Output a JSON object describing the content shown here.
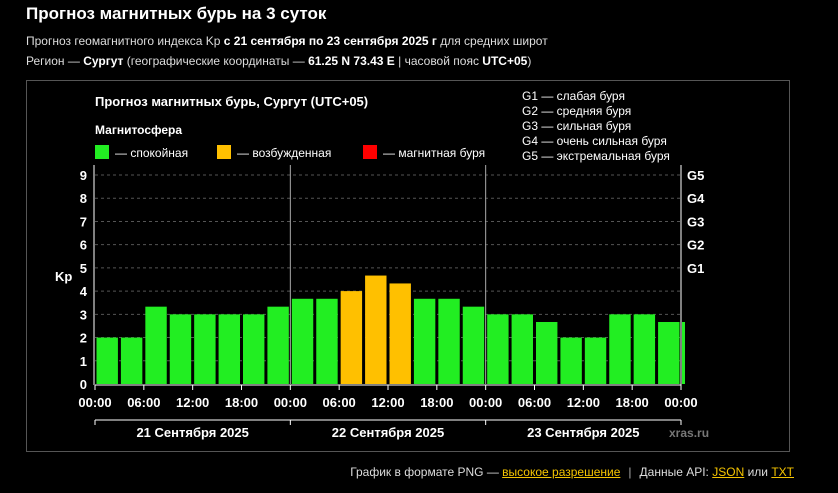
{
  "header": {
    "title": "Прогноз магнитных бурь на 3 суток",
    "sub1_a": "Прогноз геомагнитного индекса Kp",
    "sub1_dates": " с 21 сентября по 23 сентября 2025 г",
    "sub1_b": " для средних широт",
    "sub2_a": "Регион — ",
    "sub2_city": "Сургут",
    "sub2_b": " (географические координаты — ",
    "sub2_coords": "61.25 N 73.43 E",
    "sub2_c": " | часовой пояс ",
    "sub2_tz": "UTC+05",
    "sub2_d": ")"
  },
  "footer": {
    "png_text": "График в формате PNG — ",
    "png_link": "высокое разрешение",
    "api_text": "Данные API: ",
    "json_link": "JSON",
    "or_text": " или ",
    "txt_link": "TXT"
  },
  "colors": {
    "quiet": "#22ee22",
    "excited": "#ffc000",
    "storm": "#ff0000",
    "grid": "#555555"
  },
  "chart_data": {
    "type": "bar",
    "title": "Прогноз магнитных бурь, Сургут (UTC+05)",
    "ylabel": "Kp",
    "ylim": [
      0,
      9
    ],
    "yticks": [
      0,
      1,
      2,
      3,
      4,
      5,
      6,
      7,
      8,
      9
    ],
    "g_ticks": [
      {
        "label": "G1",
        "kp": 5
      },
      {
        "label": "G2",
        "kp": 6
      },
      {
        "label": "G3",
        "kp": 7
      },
      {
        "label": "G4",
        "kp": 8
      },
      {
        "label": "G5",
        "kp": 9
      }
    ],
    "legend_title": "Магнитосфера",
    "legend": [
      {
        "label": "— спокойная",
        "color": "#22ee22"
      },
      {
        "label": "— возбужденная",
        "color": "#ffc000"
      },
      {
        "label": "— магнитная буря",
        "color": "#ff0000"
      }
    ],
    "g_legend": [
      "G1 — слабая буря",
      "G2 — средняя буря",
      "G3 — сильная буря",
      "G4 — очень сильная буря",
      "G5 — экстремальная буря"
    ],
    "xtick_labels": [
      "00:00",
      "06:00",
      "12:00",
      "18:00",
      "00:00",
      "06:00",
      "12:00",
      "18:00",
      "00:00",
      "06:00",
      "12:00",
      "18:00",
      "00:00"
    ],
    "days": [
      "21 Сентября 2025",
      "22 Сентября 2025",
      "23 Сентября 2025"
    ],
    "values": [
      2.0,
      2.0,
      3.33,
      3.0,
      3.0,
      3.0,
      3.0,
      3.33,
      3.67,
      3.67,
      4.0,
      4.67,
      4.33,
      3.67,
      3.67,
      3.33,
      3.0,
      3.0,
      2.67,
      2.0,
      2.0,
      3.0,
      3.0,
      2.67,
      2.67
    ],
    "levels": [
      "quiet",
      "quiet",
      "quiet",
      "quiet",
      "quiet",
      "quiet",
      "quiet",
      "quiet",
      "quiet",
      "quiet",
      "excited",
      "excited",
      "excited",
      "quiet",
      "quiet",
      "quiet",
      "quiet",
      "quiet",
      "quiet",
      "quiet",
      "quiet",
      "quiet",
      "quiet",
      "quiet",
      "quiet"
    ],
    "watermark": "xras.ru"
  }
}
